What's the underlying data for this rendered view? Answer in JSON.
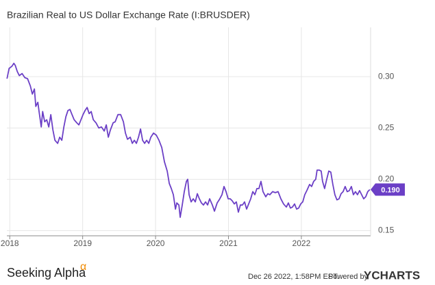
{
  "chart_data": {
    "type": "line",
    "title": "Brazilian Real to US Dollar Exchange Rate (I:BRUSDER)",
    "color": "#6b3fc6",
    "x": [
      2017.962,
      2017.991,
      2018.028,
      2018.056,
      2018.075,
      2018.103,
      2018.131,
      2018.169,
      2018.207,
      2018.244,
      2018.282,
      2018.31,
      2018.338,
      2018.357,
      2018.385,
      2018.404,
      2018.432,
      2018.451,
      2018.479,
      2018.507,
      2018.535,
      2018.563,
      2018.592,
      2018.62,
      2018.657,
      2018.685,
      2018.714,
      2018.742,
      2018.77,
      2018.798,
      2018.826,
      2018.854,
      2018.883,
      2018.92,
      2018.948,
      2018.977,
      2019.005,
      2019.033,
      2019.061,
      2019.089,
      2019.117,
      2019.146,
      2019.183,
      2019.221,
      2019.258,
      2019.296,
      2019.324,
      2019.352,
      2019.38,
      2019.418,
      2019.446,
      2019.484,
      2019.521,
      2019.559,
      2019.587,
      2019.615,
      2019.653,
      2019.681,
      2019.709,
      2019.737,
      2019.766,
      2019.794,
      2019.822,
      2019.85,
      2019.878,
      2019.907,
      2019.935,
      2019.972,
      2020.01,
      2020.047,
      2020.085,
      2020.122,
      2020.16,
      2020.188,
      2020.216,
      2020.244,
      2020.273,
      2020.291,
      2020.32,
      2020.338,
      2020.366,
      2020.394,
      2020.423,
      2020.441,
      2020.46,
      2020.488,
      2020.517,
      2020.545,
      2020.573,
      2020.601,
      2020.629,
      2020.657,
      2020.686,
      2020.714,
      2020.742,
      2020.779,
      2020.808,
      2020.845,
      2020.873,
      2020.911,
      2020.939,
      2020.967,
      2020.996,
      2021.024,
      2021.052,
      2021.08,
      2021.108,
      2021.136,
      2021.164,
      2021.193,
      2021.221,
      2021.249,
      2021.277,
      2021.305,
      2021.334,
      2021.362,
      2021.39,
      2021.418,
      2021.446,
      2021.474,
      2021.512,
      2021.54,
      2021.568,
      2021.606,
      2021.643,
      2021.681,
      2021.719,
      2021.756,
      2021.794,
      2021.822,
      2021.85,
      2021.878,
      2021.907,
      2021.935,
      2021.963,
      2021.991,
      2022.019,
      2022.047,
      2022.075,
      2022.113,
      2022.141,
      2022.169,
      2022.197,
      2022.216,
      2022.244,
      2022.272,
      2022.291,
      2022.319,
      2022.348,
      2022.376,
      2022.404,
      2022.432,
      2022.46,
      2022.488,
      2022.517,
      2022.545,
      2022.573,
      2022.601,
      2022.629,
      2022.658,
      2022.686,
      2022.714,
      2022.742,
      2022.77,
      2022.799,
      2022.827,
      2022.855,
      2022.883,
      2022.911,
      2022.939
    ],
    "values": [
      0.298,
      0.308,
      0.31,
      0.313,
      0.311,
      0.305,
      0.301,
      0.303,
      0.299,
      0.298,
      0.291,
      0.283,
      0.288,
      0.271,
      0.275,
      0.265,
      0.251,
      0.266,
      0.256,
      0.258,
      0.251,
      0.263,
      0.248,
      0.238,
      0.235,
      0.241,
      0.238,
      0.251,
      0.261,
      0.267,
      0.268,
      0.263,
      0.258,
      0.255,
      0.253,
      0.258,
      0.263,
      0.267,
      0.27,
      0.264,
      0.266,
      0.258,
      0.255,
      0.25,
      0.251,
      0.247,
      0.253,
      0.241,
      0.248,
      0.255,
      0.256,
      0.263,
      0.263,
      0.256,
      0.245,
      0.239,
      0.241,
      0.235,
      0.238,
      0.235,
      0.241,
      0.249,
      0.238,
      0.235,
      0.238,
      0.235,
      0.241,
      0.245,
      0.243,
      0.238,
      0.231,
      0.217,
      0.208,
      0.196,
      0.191,
      0.185,
      0.171,
      0.177,
      0.175,
      0.163,
      0.175,
      0.188,
      0.198,
      0.2,
      0.185,
      0.178,
      0.181,
      0.178,
      0.186,
      0.181,
      0.177,
      0.175,
      0.178,
      0.175,
      0.181,
      0.175,
      0.169,
      0.177,
      0.18,
      0.185,
      0.193,
      0.188,
      0.181,
      0.181,
      0.179,
      0.176,
      0.178,
      0.168,
      0.175,
      0.175,
      0.178,
      0.171,
      0.176,
      0.181,
      0.188,
      0.185,
      0.191,
      0.191,
      0.198,
      0.188,
      0.183,
      0.186,
      0.185,
      0.188,
      0.187,
      0.188,
      0.181,
      0.176,
      0.173,
      0.177,
      0.172,
      0.173,
      0.176,
      0.171,
      0.172,
      0.176,
      0.178,
      0.185,
      0.189,
      0.195,
      0.193,
      0.198,
      0.2,
      0.209,
      0.209,
      0.208,
      0.198,
      0.191,
      0.2,
      0.208,
      0.207,
      0.195,
      0.185,
      0.18,
      0.181,
      0.186,
      0.188,
      0.193,
      0.188,
      0.189,
      0.193,
      0.185,
      0.188,
      0.185,
      0.189,
      0.185,
      0.181,
      0.183,
      0.188,
      0.19
    ],
    "xlim": [
      2017.96,
      2022.95
    ],
    "xticks": [
      2018,
      2019,
      2020,
      2021,
      2022
    ],
    "ylim": [
      0.145,
      0.348
    ],
    "yticks": [
      {
        "value": 0.15,
        "label": "0.15"
      },
      {
        "value": 0.2,
        "label": "0.20"
      },
      {
        "value": 0.25,
        "label": "0.25"
      },
      {
        "value": 0.3,
        "label": "0.30"
      }
    ],
    "grid": true,
    "annotations": [
      {
        "value": 0.19,
        "label": "0.190",
        "color": "#6b3fc6"
      }
    ]
  },
  "footer": {
    "brand": "Seeking Alpha",
    "brand_mark": "α",
    "timestamp": "Dec 26 2022, 1:58PM EST.",
    "powered_by": "Powered by",
    "provider": "YCHARTS"
  }
}
